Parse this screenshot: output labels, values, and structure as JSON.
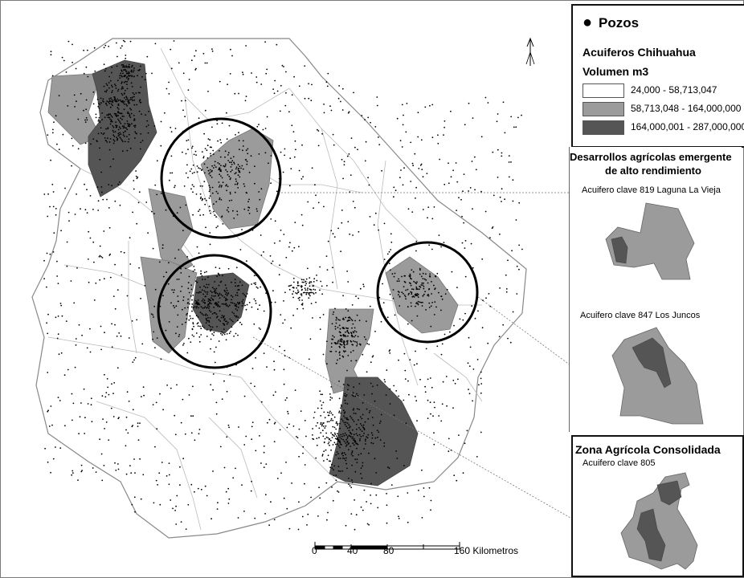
{
  "legend": {
    "wells_label": "Pozos",
    "aquifers_title": "Acuiferos Chihuahua",
    "volume_title": "Volumen m3",
    "classes": [
      {
        "range": "24,000 - 58,713,047",
        "color": "#ffffff"
      },
      {
        "range": "58,713,048 - 164,000,000",
        "color": "#9b9b9b"
      },
      {
        "range": "164,000,001 - 287,000,000",
        "color": "#555555"
      }
    ]
  },
  "emerging": {
    "title_line1": "Desarrollos agrícolas emergente",
    "title_line2": "de alto rendimiento",
    "aquifer_1": "Acuifero clave 819 Laguna La Vieja",
    "aquifer_2": "Acuifero clave 847 Los Juncos"
  },
  "consolidated": {
    "title": "Zona Agrícola Consolidada",
    "aquifer": "Acuifero clave 805"
  },
  "scale": {
    "ticks": [
      "0",
      "40",
      "80",
      "160 Kilometros"
    ]
  },
  "colors": {
    "medium_aquifer": "#9b9b9b",
    "high_aquifer": "#555555",
    "boundary": "#aaaaaa",
    "wells": "#000000"
  },
  "north_arrow": "north-arrow-icon"
}
